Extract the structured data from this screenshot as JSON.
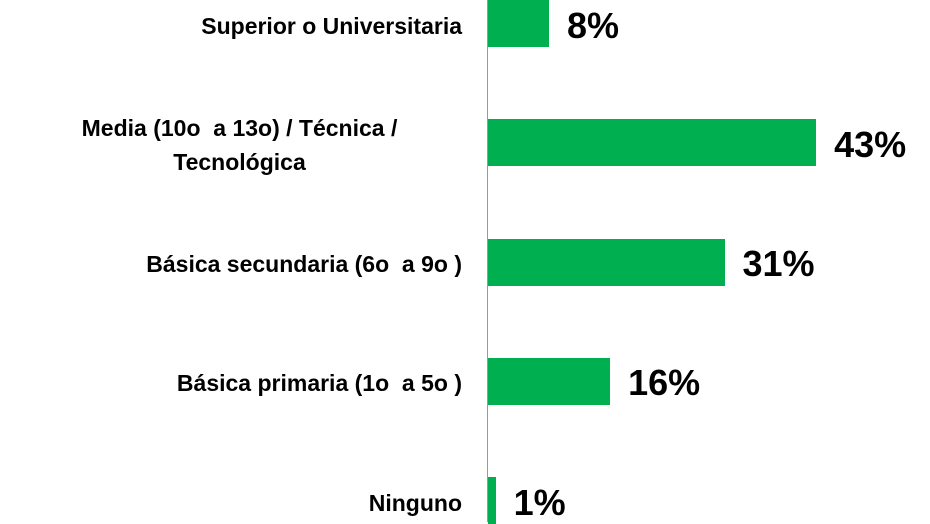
{
  "chart_data": {
    "type": "bar",
    "orientation": "horizontal",
    "categories": [
      "Superior o Universitaria",
      "Media (10o  a 13o) / Técnica / Tecnológica",
      "Básica secundaria (6o  a 9o )",
      "Básica primaria (1o  a 5o )",
      "Ninguno"
    ],
    "values": [
      8,
      43,
      31,
      16,
      1
    ],
    "value_labels": [
      "8%",
      "43%",
      "31%",
      "16%",
      "1%"
    ],
    "color": "#00b050"
  }
}
